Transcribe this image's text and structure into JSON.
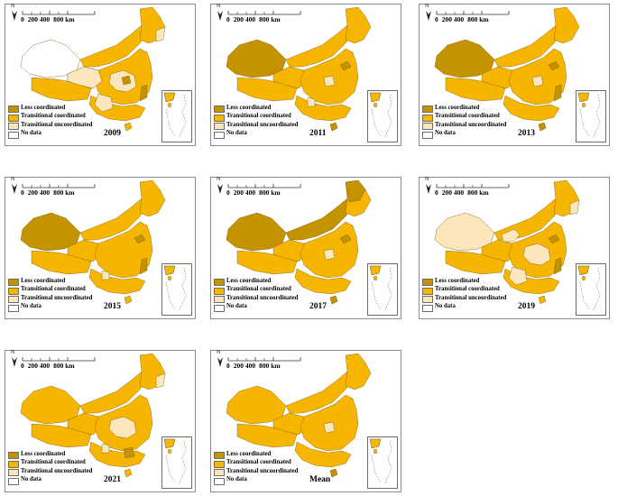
{
  "colors": {
    "less_coordinated": "#c49300",
    "transitional_coordinated": "#f6b600",
    "transitional_uncoordinated": "#fbe6bd",
    "no_data": "#ffffff"
  },
  "scale": {
    "labels": [
      "0",
      "200 400",
      "800 km"
    ]
  },
  "north_letter": "N",
  "legend": [
    {
      "key": "less_coordinated",
      "label": "Less coordinated"
    },
    {
      "key": "transitional_coordinated",
      "label": "Transitional coordinated"
    },
    {
      "key": "transitional_uncoordinated",
      "label": "Transitional uncoordinated"
    },
    {
      "key": "no_data",
      "label": "No data"
    }
  ],
  "panels": [
    {
      "year": "2009",
      "xinjiang": "no_data",
      "inner_mongolia": "transitional_coordinated",
      "lightRegions": [
        "qinghai",
        "central",
        "southwest",
        "northeast_tip"
      ],
      "darkRegions": [
        "henan_spot",
        "fujian_strip"
      ]
    },
    {
      "year": "2011",
      "xinjiang": "less_coordinated",
      "inner_mongolia": "transitional_coordinated",
      "lightRegions": [
        "central_small",
        "southwest_small"
      ],
      "darkRegions": [
        "shandong_spot",
        "hainan"
      ]
    },
    {
      "year": "2013",
      "xinjiang": "less_coordinated",
      "inner_mongolia": "transitional_coordinated",
      "lightRegions": [
        "central_small"
      ],
      "darkRegions": [
        "shandong_spot",
        "fujian_strip",
        "hainan"
      ]
    },
    {
      "year": "2015",
      "xinjiang": "less_coordinated",
      "inner_mongolia": "transitional_coordinated",
      "lightRegions": [
        "southwest_small"
      ],
      "darkRegions": [
        "shandong_spot",
        "fujian_strip"
      ]
    },
    {
      "year": "2017",
      "xinjiang": "less_coordinated",
      "inner_mongolia": "less_coordinated",
      "lightRegions": [
        "central_small"
      ],
      "darkRegions": [
        "northeast_block",
        "shandong_spot",
        "hainan"
      ]
    },
    {
      "year": "2019",
      "xinjiang": "transitional_uncoordinated",
      "inner_mongolia": "transitional_coordinated",
      "lightRegions": [
        "gansu_strip",
        "central",
        "southwest",
        "northeast_tip"
      ],
      "darkRegions": [
        "shandong_spot",
        "fujian_strip"
      ]
    },
    {
      "year": "2021",
      "xinjiang": "transitional_coordinated",
      "inner_mongolia": "transitional_coordinated",
      "lightRegions": [
        "central",
        "southwest_small",
        "northeast_tip"
      ],
      "darkRegions": [
        "guangdong_spot"
      ]
    },
    {
      "year": "Mean",
      "xinjiang": "transitional_coordinated",
      "inner_mongolia": "transitional_coordinated",
      "lightRegions": [
        "central_small"
      ],
      "darkRegions": [
        "hainan"
      ]
    }
  ]
}
